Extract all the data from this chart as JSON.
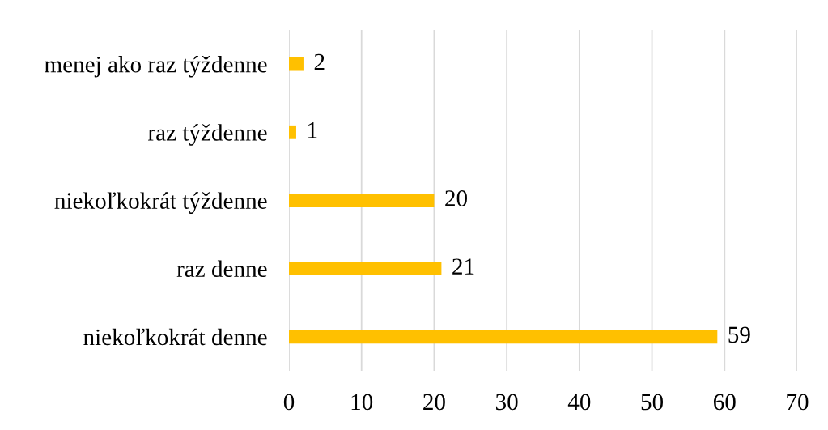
{
  "chart_data": {
    "type": "bar",
    "orientation": "horizontal",
    "categories": [
      "menej ako raz týždenne",
      "raz týždenne",
      "niekoľkokrát týždenne",
      "raz denne",
      "niekoľkokrát denne"
    ],
    "values": [
      2,
      1,
      20,
      21,
      59
    ],
    "color": "#ffc000",
    "xlim": [
      0,
      70
    ],
    "xticks": [
      0,
      10,
      20,
      30,
      40,
      50,
      60,
      70
    ],
    "grid": "x",
    "data_labels": true
  }
}
